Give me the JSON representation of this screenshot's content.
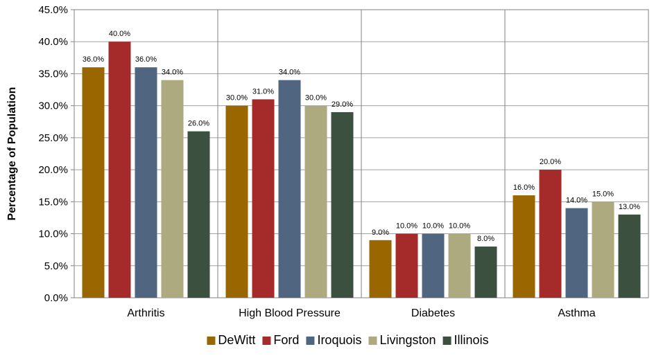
{
  "chart_data": {
    "type": "bar",
    "ylabel": "Percentage of Population",
    "xlabel": "",
    "ylim": [
      0,
      45
    ],
    "y_tick_step": 5,
    "y_tick_labels": [
      "0.0%",
      "5.0%",
      "10.0%",
      "15.0%",
      "20.0%",
      "25.0%",
      "30.0%",
      "35.0%",
      "40.0%",
      "45.0%"
    ],
    "categories": [
      "Arthritis",
      "High Blood Pressure",
      "Diabetes",
      "Asthma"
    ],
    "series": [
      {
        "name": "DeWitt",
        "color": "#996600",
        "values": [
          36,
          30,
          9,
          16
        ],
        "labels": [
          "36.0%",
          "30.0%",
          "9.0%",
          "16.0%"
        ]
      },
      {
        "name": "Ford",
        "color": "#A52A2A",
        "values": [
          40,
          31,
          10,
          20
        ],
        "labels": [
          "40.0%",
          "31.0%",
          "10.0%",
          "20.0%"
        ]
      },
      {
        "name": "Iroquois",
        "color": "#4F6580",
        "values": [
          36,
          34,
          10,
          14
        ],
        "labels": [
          "36.0%",
          "34.0%",
          "10.0%",
          "14.0%"
        ]
      },
      {
        "name": "Livingston",
        "color": "#ADAA80",
        "values": [
          34,
          30,
          10,
          15
        ],
        "labels": [
          "34.0%",
          "30.0%",
          "10.0%",
          "15.0%"
        ]
      },
      {
        "name": "Illinois",
        "color": "#3C5040",
        "values": [
          26,
          29,
          8,
          13
        ],
        "labels": [
          "26.0%",
          "29.0%",
          "8.0%",
          "13.0%"
        ]
      }
    ],
    "grid": true,
    "legend_position": "bottom"
  }
}
